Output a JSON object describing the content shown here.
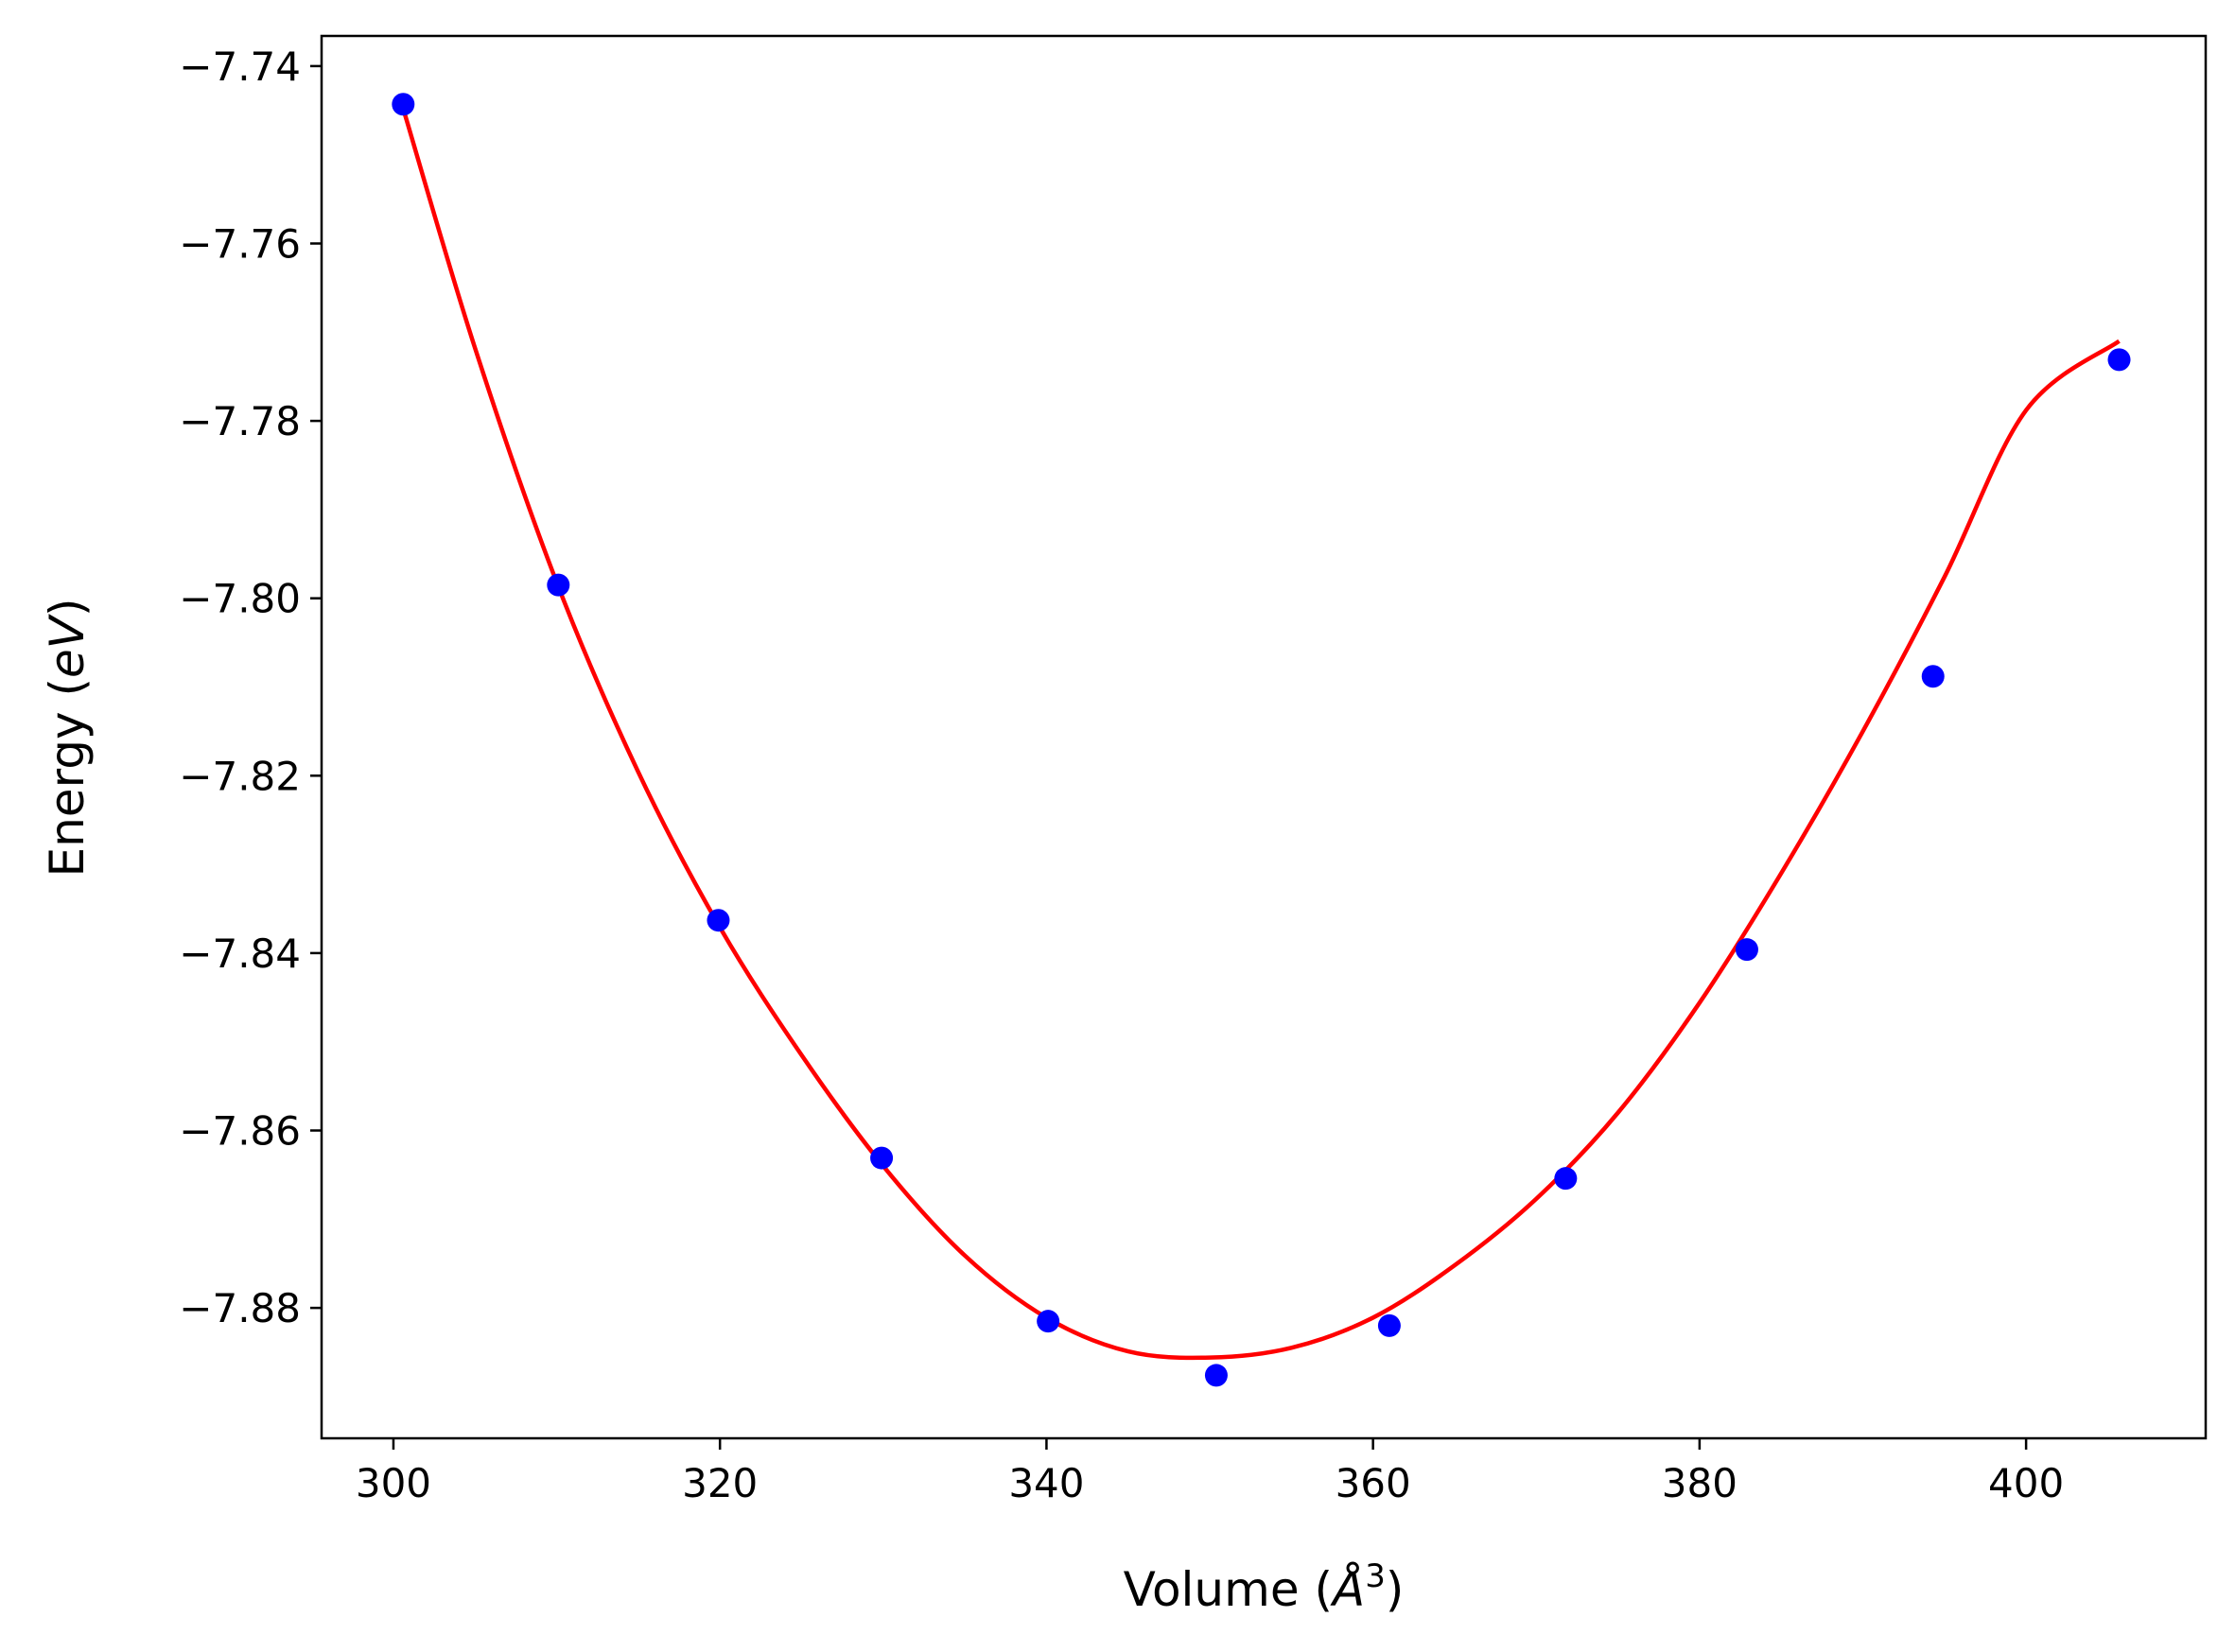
{
  "chart_data": {
    "type": "scatter",
    "title": "",
    "xlabel": {
      "prefix": "Volume (",
      "symbol": "Å",
      "sup": "3",
      "suffix": ")"
    },
    "ylabel": {
      "prefix": "Energy (",
      "symbol": "eV",
      "suffix": ")"
    },
    "xlim": [
      295.6,
      411.0
    ],
    "ylim": [
      -7.8947,
      -7.7366
    ],
    "x_ticks": [
      300,
      320,
      340,
      360,
      380,
      400
    ],
    "y_ticks": [
      -7.88,
      -7.86,
      -7.84,
      -7.82,
      -7.8,
      -7.78,
      -7.76,
      -7.74
    ],
    "x_tick_labels": [
      "300",
      "320",
      "340",
      "360",
      "380",
      "400"
    ],
    "y_tick_labels": [
      "−7.88",
      "−7.86",
      "−7.84",
      "−7.82",
      "−7.80",
      "−7.78",
      "−7.76",
      "−7.74"
    ],
    "grid": false,
    "series": [
      {
        "kind": "markers",
        "color": "#0000ff",
        "x": [
          300.6,
          310.1,
          319.9,
          329.9,
          340.1,
          350.4,
          361.0,
          371.8,
          382.9,
          394.3,
          405.7
        ],
        "y": [
          -7.7443,
          -7.7985,
          -7.8363,
          -7.8631,
          -7.8815,
          -7.8876,
          -7.882,
          -7.8654,
          -7.8396,
          -7.8088,
          -7.7731
        ]
      },
      {
        "kind": "fit-line",
        "color": "#ff0000",
        "x": [
          300.6,
          305,
          310,
          315,
          320,
          325,
          330,
          335,
          340,
          345,
          350,
          355,
          360,
          365,
          370,
          375,
          380,
          385,
          390,
          395,
          400,
          405.7
        ],
        "y": [
          -7.7448,
          -7.7718,
          -7.7982,
          -7.8196,
          -7.8371,
          -7.8515,
          -7.864,
          -7.8741,
          -7.8811,
          -7.8849,
          -7.8856,
          -7.8845,
          -7.8811,
          -7.8752,
          -7.8677,
          -7.858,
          -7.8456,
          -7.831,
          -7.815,
          -7.7976,
          -7.7788,
          -7.771
        ]
      }
    ]
  }
}
